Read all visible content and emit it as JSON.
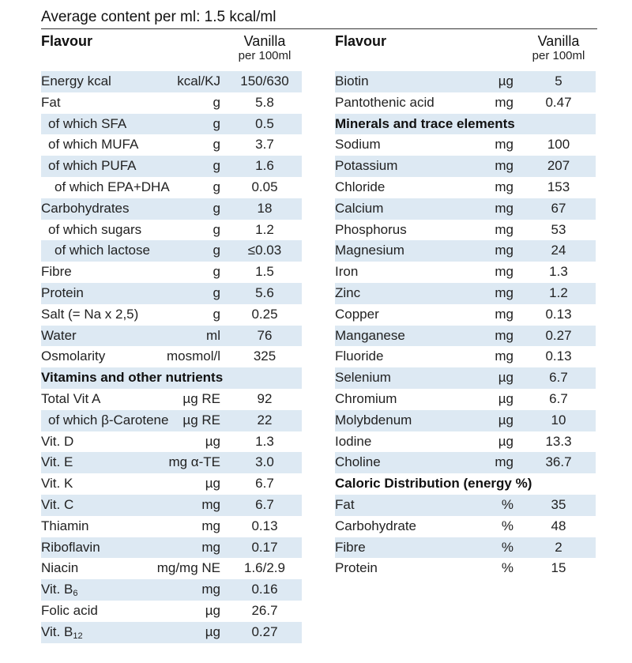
{
  "title": "Average content per ml: 1.5 kcal/ml",
  "left": {
    "header": {
      "flavour": "Flavour",
      "vanilla": "Vanilla",
      "per": "per 100ml"
    },
    "rows": [
      {
        "name": "Energy kcal",
        "unit": "kcal/KJ",
        "value": "150/630",
        "indent": 0,
        "shade": true
      },
      {
        "name": "Fat",
        "unit": "g",
        "value": "5.8",
        "indent": 0,
        "shade": false
      },
      {
        "name": "of which SFA",
        "unit": "g",
        "value": "0.5",
        "indent": 1,
        "shade": true
      },
      {
        "name": "of which MUFA",
        "unit": "g",
        "value": "3.7",
        "indent": 1,
        "shade": false
      },
      {
        "name": "of which PUFA",
        "unit": "g",
        "value": "1.6",
        "indent": 1,
        "shade": true
      },
      {
        "name": "of which EPA+DHA",
        "unit": "g",
        "value": "0.05",
        "indent": 2,
        "shade": false
      },
      {
        "name": "Carbohydrates",
        "unit": "g",
        "value": "18",
        "indent": 0,
        "shade": true
      },
      {
        "name": "of which sugars",
        "unit": "g",
        "value": "1.2",
        "indent": 1,
        "shade": false
      },
      {
        "name": "of which lactose",
        "unit": "g",
        "value": "≤0.03",
        "indent": 2,
        "shade": true
      },
      {
        "name": "Fibre",
        "unit": "g",
        "value": "1.5",
        "indent": 0,
        "shade": false
      },
      {
        "name": "Protein",
        "unit": "g",
        "value": "5.6",
        "indent": 0,
        "shade": true
      },
      {
        "name": "Salt (= Na x 2,5)",
        "unit": "g",
        "value": "0.25",
        "indent": 0,
        "shade": false
      },
      {
        "name": "Water",
        "unit": "ml",
        "value": "76",
        "indent": 0,
        "shade": true
      },
      {
        "name": "Osmolarity",
        "unit": "mosmol/l",
        "value": "325",
        "indent": 0,
        "shade": false
      },
      {
        "name": "Vitamins and other nutrients",
        "unit": "",
        "value": "",
        "indent": 0,
        "shade": true,
        "section": true
      },
      {
        "name": "Total Vit A",
        "unit": "µg RE",
        "value": "92",
        "indent": 0,
        "shade": false
      },
      {
        "name": "of which β-Carotene",
        "unit": "µg RE",
        "value": "22",
        "indent": 1,
        "shade": true
      },
      {
        "name": "Vit. D",
        "unit": "µg",
        "value": "1.3",
        "indent": 0,
        "shade": false
      },
      {
        "name": "Vit. E",
        "unit": "mg α-TE",
        "value": "3.0",
        "indent": 0,
        "shade": true
      },
      {
        "name": "Vit. K",
        "unit": "µg",
        "value": "6.7",
        "indent": 0,
        "shade": false
      },
      {
        "name": "Vit. C",
        "unit": "mg",
        "value": "6.7",
        "indent": 0,
        "shade": true
      },
      {
        "name": "Thiamin",
        "unit": "mg",
        "value": "0.13",
        "indent": 0,
        "shade": false
      },
      {
        "name": "Riboflavin",
        "unit": "mg",
        "value": "0.17",
        "indent": 0,
        "shade": true
      },
      {
        "name": "Niacin",
        "unit": "mg/mg NE",
        "value": "1.6/2.9",
        "indent": 0,
        "shade": false
      },
      {
        "name": "Vit. B",
        "sub": "6",
        "unit": "mg",
        "value": "0.16",
        "indent": 0,
        "shade": true
      },
      {
        "name": "Folic acid",
        "unit": "µg",
        "value": "26.7",
        "indent": 0,
        "shade": false
      },
      {
        "name": "Vit. B",
        "sub": "12",
        "unit": "µg",
        "value": "0.27",
        "indent": 0,
        "shade": true
      }
    ]
  },
  "right": {
    "header": {
      "flavour": "Flavour",
      "vanilla": "Vanilla",
      "per": "per 100ml"
    },
    "rows": [
      {
        "name": "Biotin",
        "unit": "µg",
        "value": "5",
        "indent": 0,
        "shade": true
      },
      {
        "name": "Pantothenic acid",
        "unit": "mg",
        "value": "0.47",
        "indent": 0,
        "shade": false
      },
      {
        "name": "Minerals and trace elements",
        "unit": "",
        "value": "",
        "indent": 0,
        "shade": true,
        "section": true
      },
      {
        "name": "Sodium",
        "unit": "mg",
        "value": "100",
        "indent": 0,
        "shade": false
      },
      {
        "name": "Potassium",
        "unit": "mg",
        "value": "207",
        "indent": 0,
        "shade": true
      },
      {
        "name": "Chloride",
        "unit": "mg",
        "value": "153",
        "indent": 0,
        "shade": false
      },
      {
        "name": "Calcium",
        "unit": "mg",
        "value": "67",
        "indent": 0,
        "shade": true
      },
      {
        "name": "Phosphorus",
        "unit": "mg",
        "value": "53",
        "indent": 0,
        "shade": false
      },
      {
        "name": "Magnesium",
        "unit": "mg",
        "value": "24",
        "indent": 0,
        "shade": true
      },
      {
        "name": "Iron",
        "unit": "mg",
        "value": "1.3",
        "indent": 0,
        "shade": false
      },
      {
        "name": "Zinc",
        "unit": "mg",
        "value": "1.2",
        "indent": 0,
        "shade": true
      },
      {
        "name": "Copper",
        "unit": "mg",
        "value": "0.13",
        "indent": 0,
        "shade": false
      },
      {
        "name": "Manganese",
        "unit": "mg",
        "value": "0.27",
        "indent": 0,
        "shade": true
      },
      {
        "name": "Fluoride",
        "unit": "mg",
        "value": "0.13",
        "indent": 0,
        "shade": false
      },
      {
        "name": "Selenium",
        "unit": "µg",
        "value": "6.7",
        "indent": 0,
        "shade": true
      },
      {
        "name": "Chromium",
        "unit": "µg",
        "value": "6.7",
        "indent": 0,
        "shade": false
      },
      {
        "name": "Molybdenum",
        "unit": "µg",
        "value": "10",
        "indent": 0,
        "shade": true
      },
      {
        "name": "Iodine",
        "unit": "µg",
        "value": "13.3",
        "indent": 0,
        "shade": false
      },
      {
        "name": "Choline",
        "unit": "mg",
        "value": "36.7",
        "indent": 0,
        "shade": true
      },
      {
        "name": "Caloric Distribution (energy %)",
        "unit": "",
        "value": "",
        "indent": 0,
        "shade": false,
        "section": true
      },
      {
        "name": "Fat",
        "unit": "%",
        "value": "35",
        "indent": 0,
        "shade": true
      },
      {
        "name": "Carbohydrate",
        "unit": "%",
        "value": "48",
        "indent": 0,
        "shade": false
      },
      {
        "name": "Fibre",
        "unit": "%",
        "value": "2",
        "indent": 0,
        "shade": true
      },
      {
        "name": "Protein",
        "unit": "%",
        "value": "15",
        "indent": 0,
        "shade": false
      }
    ]
  }
}
